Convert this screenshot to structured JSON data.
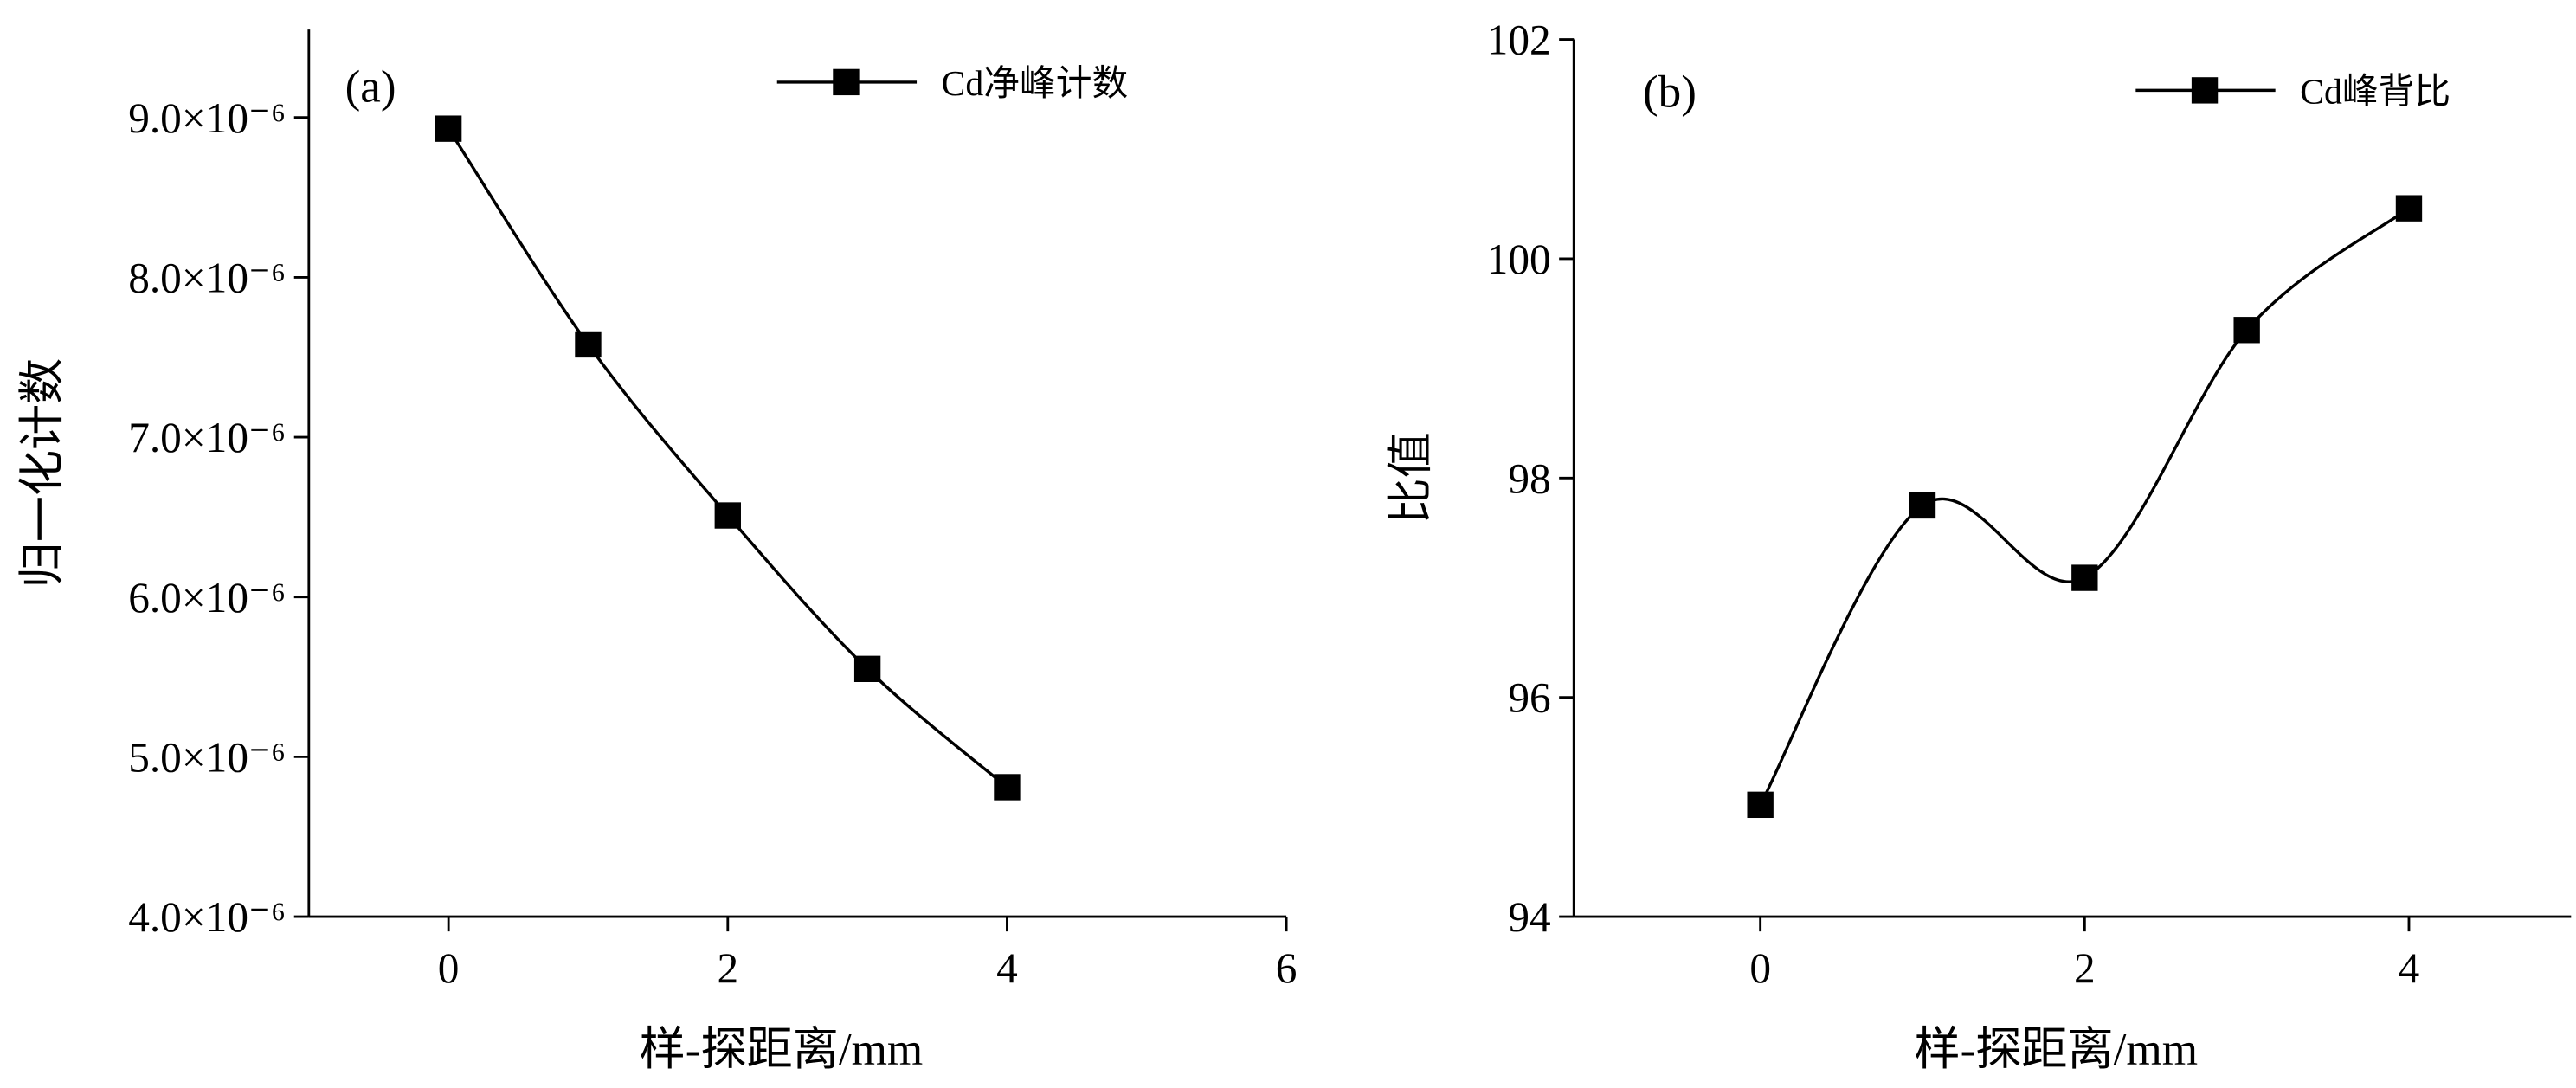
{
  "chart_data": [
    {
      "type": "line",
      "panel_label": "(a)",
      "xlabel": "样-探距离/mm",
      "ylabel": "归一化计数",
      "x": [
        0,
        1,
        2,
        3,
        4
      ],
      "series": [
        {
          "name": "Cd净峰计数",
          "color": "#000000",
          "values": [
            8.93e-06,
            7.58e-06,
            6.51e-06,
            5.55e-06,
            4.81e-06
          ]
        }
      ],
      "xlim": [
        -1,
        6
      ],
      "xticks": [
        0,
        2,
        4,
        6
      ],
      "ylim": [
        4e-06,
        9.55e-06
      ],
      "yticks": [
        {
          "value": 4e-06,
          "label": "4.0×10⁻⁶"
        },
        {
          "value": 5e-06,
          "label": "5.0×10⁻⁶"
        },
        {
          "value": 6e-06,
          "label": "6.0×10⁻⁶"
        },
        {
          "value": 7e-06,
          "label": "7.0×10⁻⁶"
        },
        {
          "value": 8e-06,
          "label": "8.0×10⁻⁶"
        },
        {
          "value": 9e-06,
          "label": "9.0×10⁻⁶"
        }
      ],
      "marker": "square",
      "smooth": true,
      "legend": "upper right"
    },
    {
      "type": "line",
      "panel_label": "(b)",
      "xlabel": "样-探距离/mm",
      "ylabel": "比值",
      "x": [
        0,
        1,
        2,
        3,
        4
      ],
      "series": [
        {
          "name": "Cd峰背比",
          "color": "#000000",
          "values": [
            95.02,
            97.75,
            97.09,
            99.35,
            100.46
          ]
        }
      ],
      "xlim": [
        -1.15,
        5
      ],
      "xticks": [
        0,
        2,
        4
      ],
      "ylim": [
        94,
        102
      ],
      "yticks": [
        94,
        96,
        98,
        100,
        102
      ],
      "marker": "square",
      "smooth": true,
      "legend": "upper right"
    }
  ]
}
